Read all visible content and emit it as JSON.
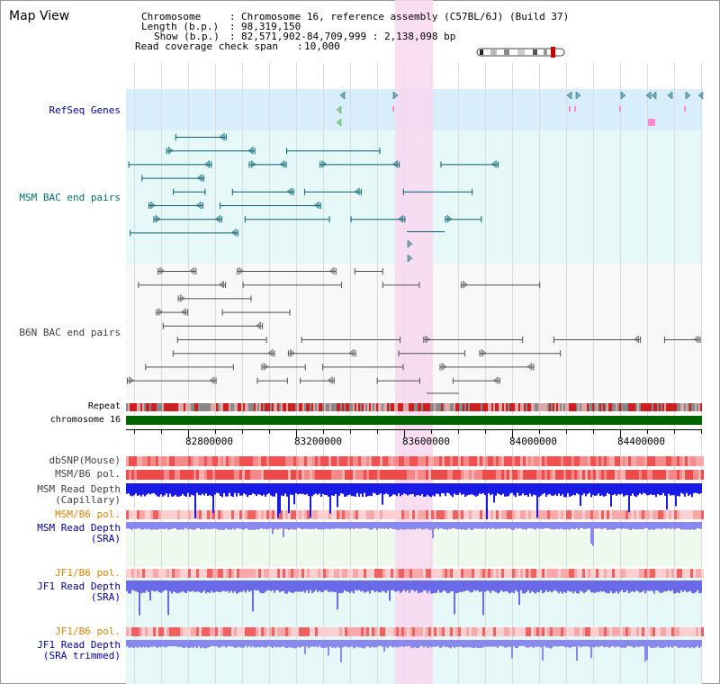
{
  "title": "Map View",
  "info": {
    "chromosome_key": "Chromosome",
    "chromosome_value": "Chromosome 16, reference assembly (C57BL/6J) (Build 37)",
    "length_key": "Length (b.p.)",
    "length_value": "98,319,150",
    "show_key": "Show (b.p.)",
    "show_value": "82,571,902-84,709,999 : 2,138,098 bp",
    "coverage_key": "Read coverage check span",
    "coverage_value": "10,000"
  },
  "colors": {
    "refseq_bg": "#d8eefa",
    "msm_bac_bg": "#e6f8f8",
    "b6n_bac_bg": "#f8f8f8",
    "highlight": "#f8d8f0",
    "msm_sra_bg": "#eefaee",
    "jf1_bg": "#e6f8f8",
    "chromosome_bar": "#006400",
    "refseq_label": "#0000a0",
    "msm_bac_label": "#007070",
    "b6n_label": "#404040",
    "orange_label": "#e08000",
    "blue_label": "#0000a0",
    "read_depth_capillary": "#1a1ae6",
    "read_depth_sra": "#8888ee"
  },
  "tracks": {
    "refseq": "RefSeq Genes",
    "msm_bac": "MSM BAC end pairs",
    "b6n_bac": "B6N BAC end pairs",
    "repeat": "Repeat",
    "chromosome": "chromosome 16",
    "dbsnp": "dbSNP(Mouse)",
    "msm_b6_pol": "MSM/B6 pol.",
    "msm_depth_cap_1": "MSM Read Depth",
    "msm_depth_cap_2": "(Capillary)",
    "msm_b6_pol_2": "MSM/B6 pol.",
    "msm_depth_sra_1": "MSM Read Depth",
    "msm_depth_sra_2": "(SRA)",
    "jf1_b6_pol_1": "JF1/B6 pol.",
    "jf1_depth_sra_1": "JF1 Read Depth",
    "jf1_depth_sra_2": "(SRA)",
    "jf1_b6_pol_2": "JF1/B6 pol.",
    "jf1_depth_trim_1": "JF1 Read Depth",
    "jf1_depth_trim_2": "(SRA trimmed)"
  },
  "ruler": {
    "ticks": [
      "82800000",
      "83200000",
      "83600000",
      "84000000",
      "84400000"
    ]
  }
}
